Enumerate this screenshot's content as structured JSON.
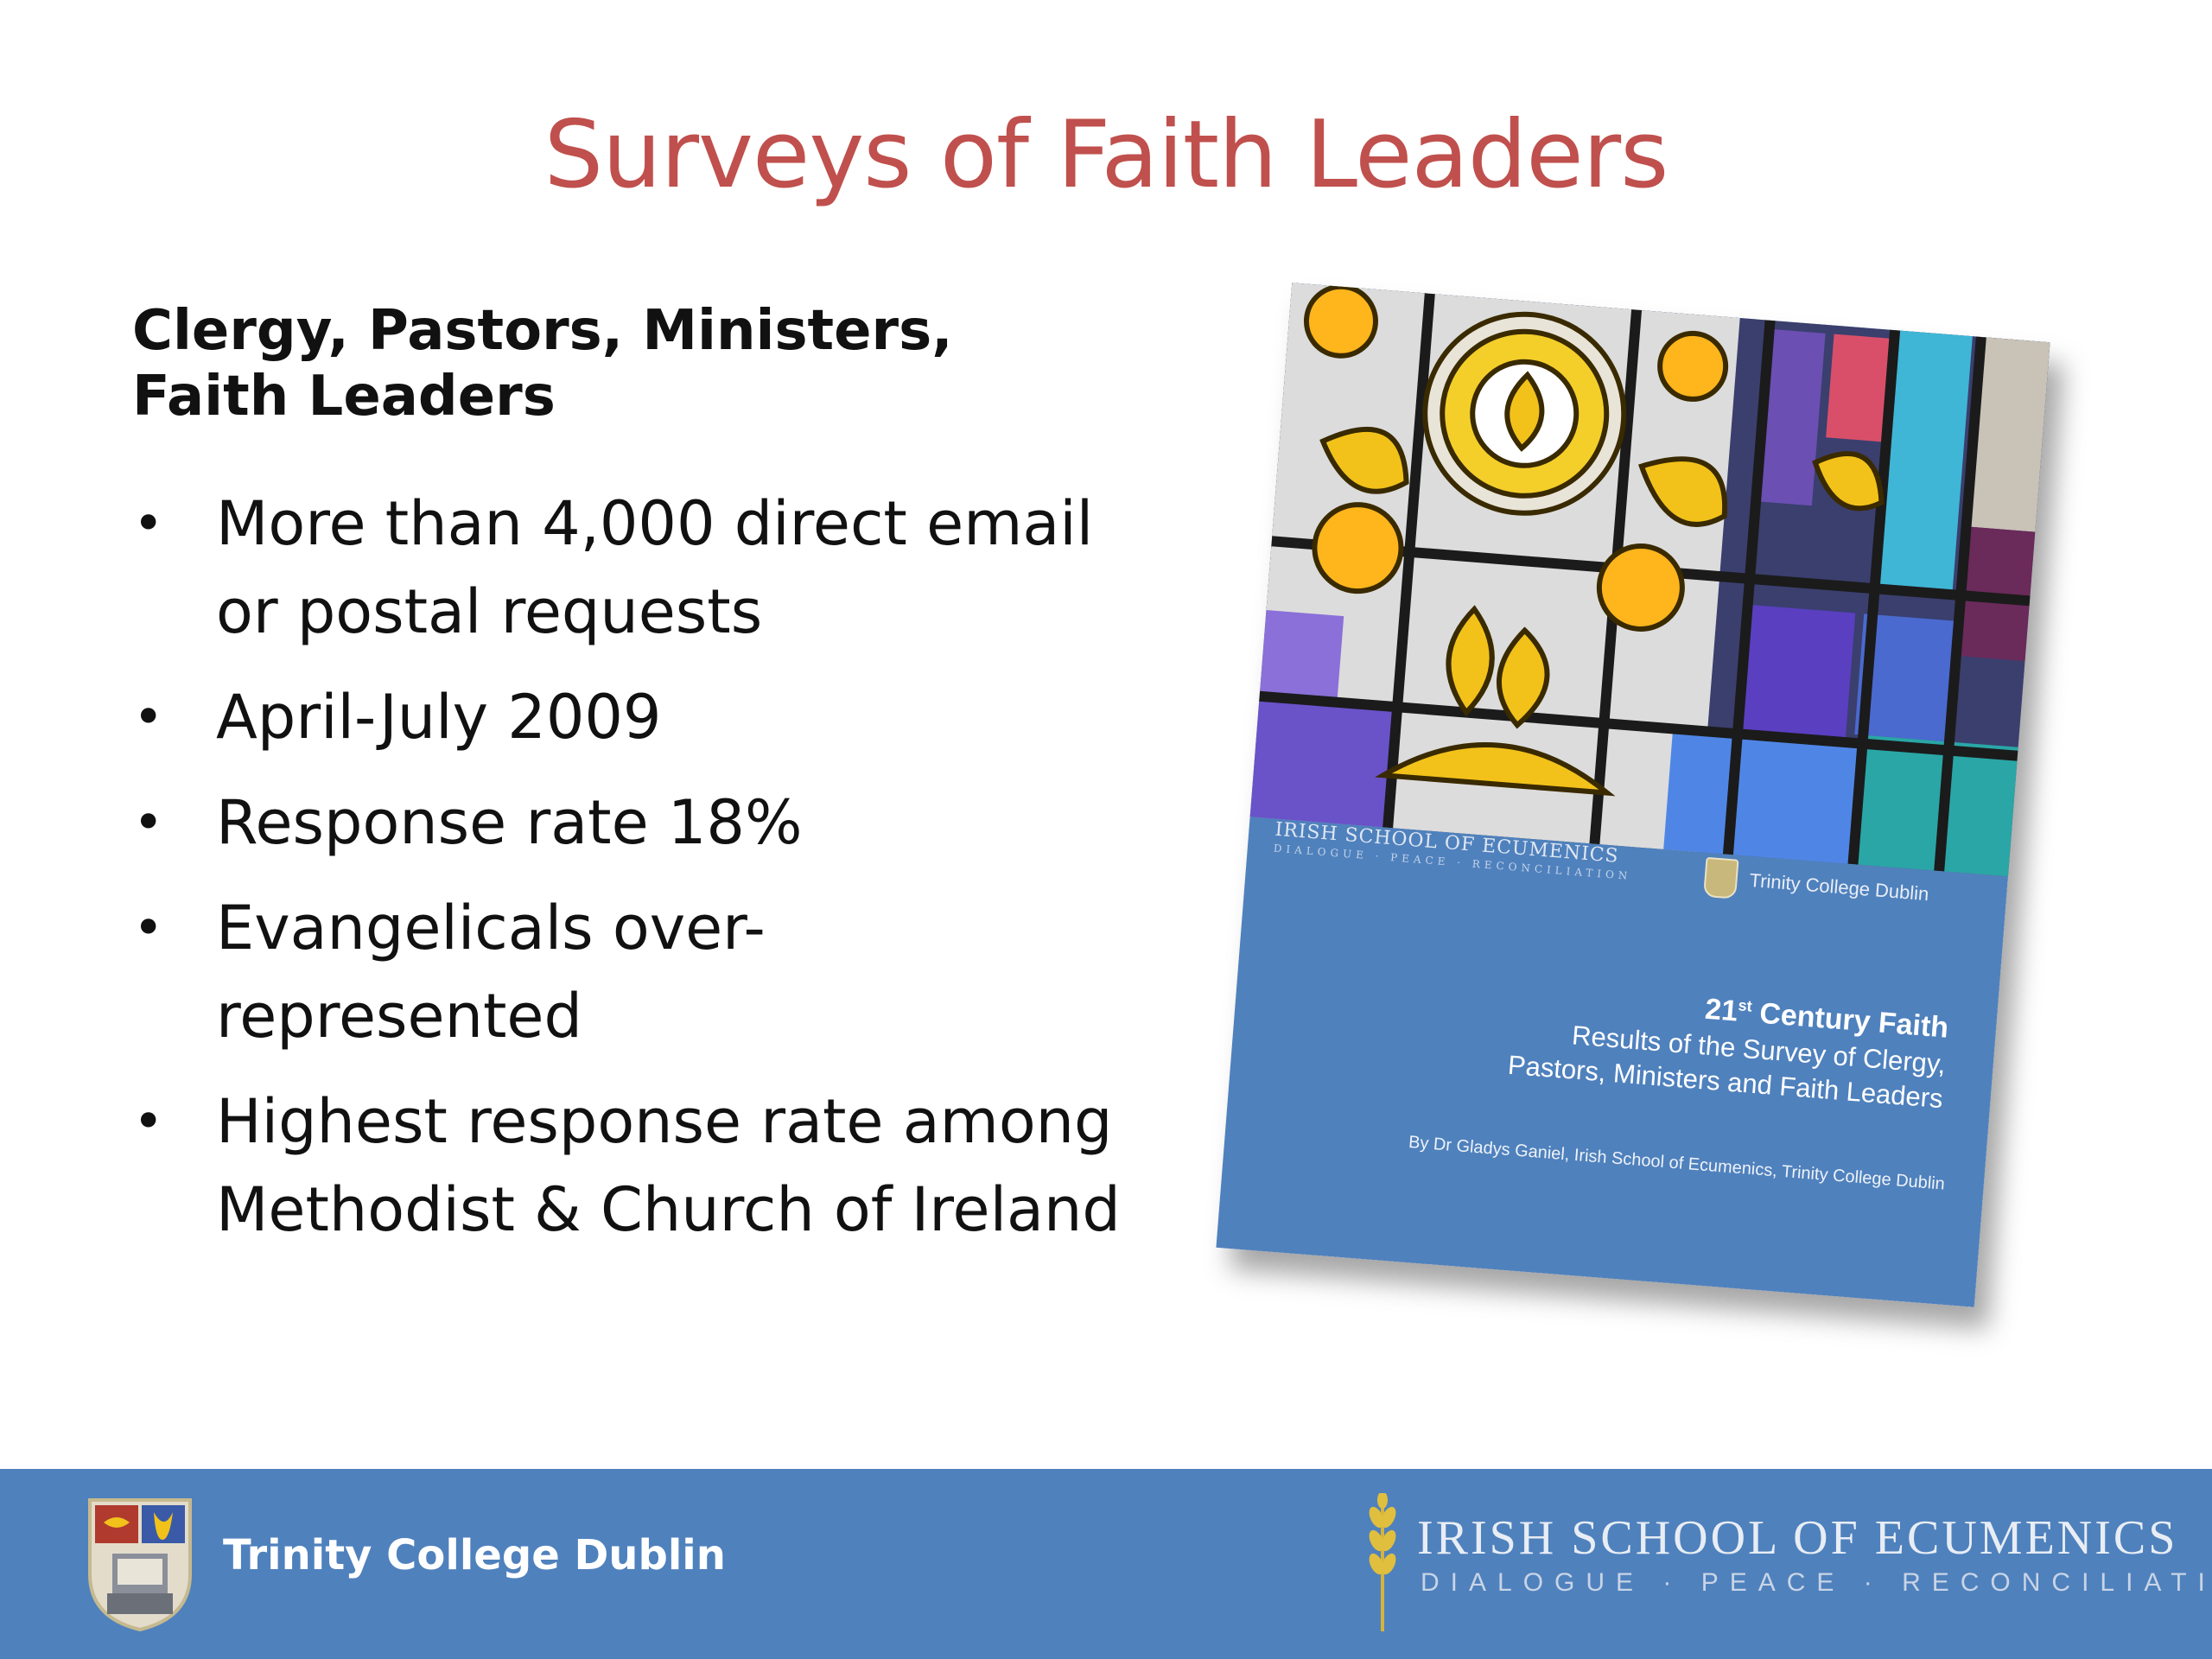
{
  "slide": {
    "title": "Surveys of Faith Leaders",
    "subheading": "Clergy, Pastors, Ministers, Faith Leaders",
    "bullets": [
      "More than 4,000 direct email or postal requests",
      "April-July 2009",
      "Response rate 18%",
      "Evangelicals over-represented",
      "Highest response rate among Methodist & Church of Ireland"
    ],
    "bullet_glyph": "•"
  },
  "report_cover": {
    "logo_left": "IRISH SCHOOL OF ECUMENICS",
    "logo_left_sub": "DIALOGUE · PEACE · RECONCILIATION",
    "logo_right": "Trinity College Dublin",
    "title_prefix": "21",
    "title_sup": "st",
    "title_rest": " Century Faith",
    "title_line2": "Results of the Survey of Clergy,",
    "title_line3": "Pastors, Ministers and Faith Leaders",
    "author": "By Dr Gladys Ganiel, Irish School of Ecumenics, Trinity College Dublin",
    "cover_color": "#4f81bd"
  },
  "footer": {
    "left_label": "Trinity College Dublin",
    "right_label": "IRISH SCHOOL OF ECUMENICS",
    "right_sub": "DIALOGUE · PEACE · RECONCILIATION",
    "bar_color": "#4f81bd"
  },
  "colors": {
    "title": "#c0504d",
    "text": "#111111",
    "footer": "#4f81bd"
  }
}
